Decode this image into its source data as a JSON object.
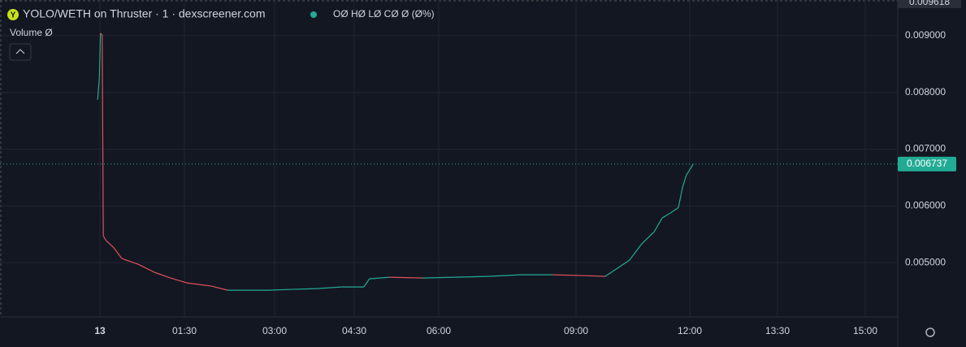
{
  "chart_data": {
    "type": "line",
    "title": "YOLO/WETH on Thruster · 1 · dexscreener.com",
    "ohlc_text": "OØ HØ LØ CØ Ø (Ø%)",
    "volume_text": "Volume  Ø",
    "top_price_label": "0.009618",
    "last_price_label": "0.006737",
    "last_price": 0.006737,
    "up_color": "#22ab94",
    "down_color": "#e0525a",
    "grid": true,
    "x": [
      -0.04,
      -0.01,
      0.01,
      0.04,
      0.06,
      0.1,
      0.25,
      0.39,
      0.68,
      0.97,
      1.25,
      1.54,
      1.95,
      2.22,
      2.49,
      2.89,
      3.34,
      3.8,
      4.26,
      4.67,
      4.77,
      5.13,
      5.71,
      6.36,
      7.07,
      7.78,
      8.49,
      9.24,
      9.77,
      10.09,
      10.41,
      10.73,
      11.06,
      11.27,
      11.48,
      11.7,
      11.81,
      11.91,
      12.06
    ],
    "values": [
      0.007871,
      0.008257,
      0.009043,
      0.009014,
      0.005471,
      0.0054,
      0.005257,
      0.005071,
      0.004971,
      0.004829,
      0.004729,
      0.004643,
      0.004586,
      0.004514,
      0.004514,
      0.004514,
      0.004529,
      0.004543,
      0.004571,
      0.004571,
      0.004714,
      0.004743,
      0.004729,
      0.004743,
      0.004757,
      0.004786,
      0.004786,
      0.004771,
      0.004757,
      0.0049,
      0.005043,
      0.005329,
      0.005543,
      0.005786,
      0.005871,
      0.005971,
      0.006329,
      0.006543,
      0.006737
    ],
    "xlim": [
      -1.77,
      15.56
    ],
    "xticks": [
      {
        "value": 0,
        "label": "13"
      },
      {
        "value": 1.5,
        "label": "01:30"
      },
      {
        "value": 3,
        "label": "03:00"
      },
      {
        "value": 4.5,
        "label": "04:30"
      },
      {
        "value": 6,
        "label": "06:00"
      },
      {
        "value": 9,
        "label": "09:00"
      },
      {
        "value": 12,
        "label": "12:00"
      },
      {
        "value": 13.5,
        "label": "13:30"
      },
      {
        "value": 15,
        "label": "15:00"
      }
    ],
    "ylim": [
      0.004043,
      0.009629
    ],
    "yticks": [
      {
        "value": 0.005,
        "label": "0.005000"
      },
      {
        "value": 0.006,
        "label": "0.006000"
      },
      {
        "value": 0.007,
        "label": "0.007000"
      },
      {
        "value": 0.008,
        "label": "0.008000"
      },
      {
        "value": 0.009,
        "label": "0.009000"
      }
    ]
  }
}
